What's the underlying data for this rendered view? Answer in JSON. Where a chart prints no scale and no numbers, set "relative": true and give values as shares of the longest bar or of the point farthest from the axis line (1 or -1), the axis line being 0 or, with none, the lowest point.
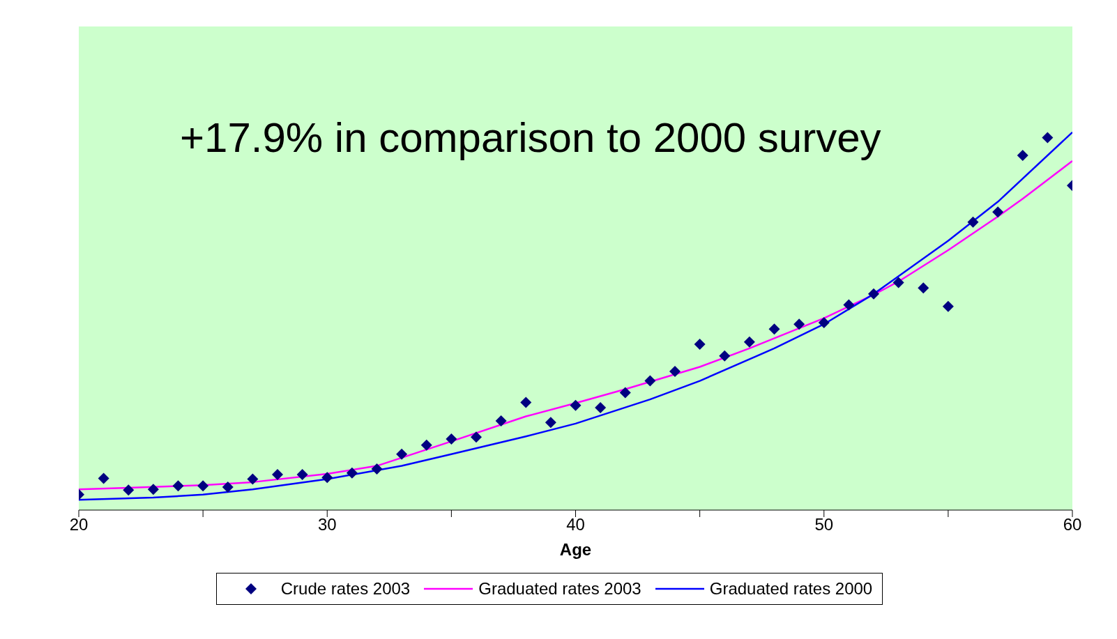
{
  "chart_data": {
    "type": "line",
    "relative": true,
    "xlabel": "Age",
    "xlim": [
      20,
      60
    ],
    "xticks": [
      20,
      {
        "value": 25,
        "label": null
      },
      30,
      {
        "value": 35,
        "label": null
      },
      40,
      {
        "value": 45,
        "label": null
      },
      50,
      {
        "value": 55,
        "label": null
      },
      60
    ],
    "annotations": [
      "+17.9% in comparison to 2000 survey"
    ],
    "legend": "bottom",
    "grid": false,
    "series": [
      {
        "name": "Crude rates 2003",
        "type": "scatter",
        "marker": "diamond",
        "color": "#000080",
        "x": [
          20,
          21,
          22,
          23,
          24,
          25,
          26,
          27,
          28,
          29,
          30,
          31,
          32,
          33,
          34,
          35,
          36,
          37,
          38,
          39,
          40,
          41,
          42,
          43,
          44,
          45,
          46,
          47,
          48,
          49,
          50,
          51,
          52,
          53,
          54,
          55,
          56,
          57,
          58,
          59,
          60
        ],
        "values": [
          0.041,
          0.084,
          0.053,
          0.055,
          0.064,
          0.064,
          0.061,
          0.082,
          0.094,
          0.094,
          0.086,
          0.098,
          0.109,
          0.148,
          0.172,
          0.188,
          0.193,
          0.236,
          0.285,
          0.232,
          0.277,
          0.271,
          0.311,
          0.342,
          0.367,
          0.439,
          0.408,
          0.445,
          0.479,
          0.492,
          0.496,
          0.543,
          0.572,
          0.602,
          0.588,
          0.539,
          0.762,
          0.789,
          0.939,
          0.986,
          0.859
        ]
      },
      {
        "name": "Graduated rates 2003",
        "marker": "none",
        "color": "#ff00ff",
        "x": [
          20,
          22,
          25,
          27,
          30,
          32,
          35,
          38,
          40,
          42,
          45,
          47,
          50,
          52,
          53,
          55,
          57,
          58,
          60
        ],
        "values": [
          0.055,
          0.059,
          0.066,
          0.074,
          0.096,
          0.117,
          0.182,
          0.248,
          0.283,
          0.32,
          0.379,
          0.428,
          0.508,
          0.57,
          0.605,
          0.688,
          0.777,
          0.824,
          0.924
        ]
      },
      {
        "name": "Graduated rates 2000",
        "marker": "none",
        "color": "#0000ff",
        "x": [
          20,
          23,
          25,
          27,
          30,
          33,
          35,
          38,
          40,
          43,
          45,
          48,
          50,
          52,
          55,
          57,
          60
        ],
        "values": [
          0.027,
          0.033,
          0.041,
          0.055,
          0.082,
          0.117,
          0.148,
          0.195,
          0.229,
          0.293,
          0.342,
          0.428,
          0.492,
          0.572,
          0.713,
          0.816,
          1
        ]
      }
    ]
  }
}
